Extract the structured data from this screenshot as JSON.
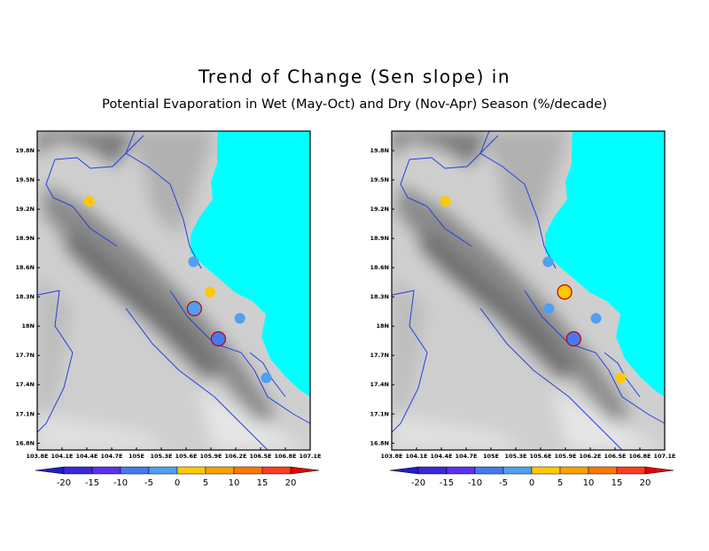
{
  "title": "Trend of Change (Sen slope) in",
  "subtitle": "Potential Evaporation in Wet (May-Oct) and Dry (Nov-Apr) Season (%/decade)",
  "xlim": [
    103.8,
    107.1
  ],
  "ylim": [
    16.73,
    20.0
  ],
  "xticks": [
    {
      "value": 103.8,
      "label": "103.8E"
    },
    {
      "value": 104.1,
      "label": "104.1E"
    },
    {
      "value": 104.4,
      "label": "104.4E"
    },
    {
      "value": 104.7,
      "label": "104.7E"
    },
    {
      "value": 105,
      "label": "105E"
    },
    {
      "value": 105.3,
      "label": "105.3E"
    },
    {
      "value": 105.6,
      "label": "105.6E"
    },
    {
      "value": 105.9,
      "label": "105.9E"
    },
    {
      "value": 106.2,
      "label": "106.2E"
    },
    {
      "value": 106.5,
      "label": "106.5E"
    },
    {
      "value": 106.8,
      "label": "106.8E"
    },
    {
      "value": 107.1,
      "label": "107.1E"
    }
  ],
  "yticks": [
    {
      "value": 19.8,
      "label": "19.8N"
    },
    {
      "value": 19.5,
      "label": "19.5N"
    },
    {
      "value": 19.2,
      "label": "19.2N"
    },
    {
      "value": 18.9,
      "label": "18.9N"
    },
    {
      "value": 18.6,
      "label": "18.6N"
    },
    {
      "value": 18.3,
      "label": "18.3N"
    },
    {
      "value": 18,
      "label": "18N"
    },
    {
      "value": 17.7,
      "label": "17.7N"
    },
    {
      "value": 17.4,
      "label": "17.4N"
    },
    {
      "value": 17.1,
      "label": "17.1N"
    },
    {
      "value": 16.8,
      "label": "16.8N"
    }
  ],
  "colorbar": {
    "levels": [
      -20,
      -15,
      -10,
      -5,
      0,
      5,
      10,
      15,
      20
    ],
    "colors": [
      "#1e1ec8",
      "#3c28dc",
      "#5a32f0",
      "#4678f0",
      "#50a0f0",
      "#ffc800",
      "#ffa000",
      "#ff7800",
      "#ff3c1e",
      "#e60000"
    ]
  },
  "panels": [
    {
      "stations": [
        {
          "lon": 104.43,
          "lat": 19.28,
          "value": 2.5,
          "significant": false
        },
        {
          "lon": 105.69,
          "lat": 18.66,
          "value": -2.5,
          "significant": false
        },
        {
          "lon": 105.89,
          "lat": 18.35,
          "value": 2.5,
          "significant": false
        },
        {
          "lon": 105.7,
          "lat": 18.18,
          "value": -2.5,
          "significant": true
        },
        {
          "lon": 106.25,
          "lat": 18.08,
          "value": -2.5,
          "significant": false
        },
        {
          "lon": 105.99,
          "lat": 17.87,
          "value": -7.5,
          "significant": true
        },
        {
          "lon": 106.57,
          "lat": 17.47,
          "value": -2.5,
          "significant": false
        }
      ]
    },
    {
      "stations": [
        {
          "lon": 104.45,
          "lat": 19.28,
          "value": 2.5,
          "significant": false
        },
        {
          "lon": 105.69,
          "lat": 18.66,
          "value": -2.5,
          "significant": false
        },
        {
          "lon": 105.89,
          "lat": 18.35,
          "value": 2.5,
          "significant": true
        },
        {
          "lon": 105.7,
          "lat": 18.18,
          "value": -2.5,
          "significant": false
        },
        {
          "lon": 106.27,
          "lat": 18.08,
          "value": -2.5,
          "significant": false
        },
        {
          "lon": 106.0,
          "lat": 17.87,
          "value": -7.5,
          "significant": true
        },
        {
          "lon": 106.57,
          "lat": 17.47,
          "value": 2.5,
          "significant": false
        }
      ]
    }
  ]
}
